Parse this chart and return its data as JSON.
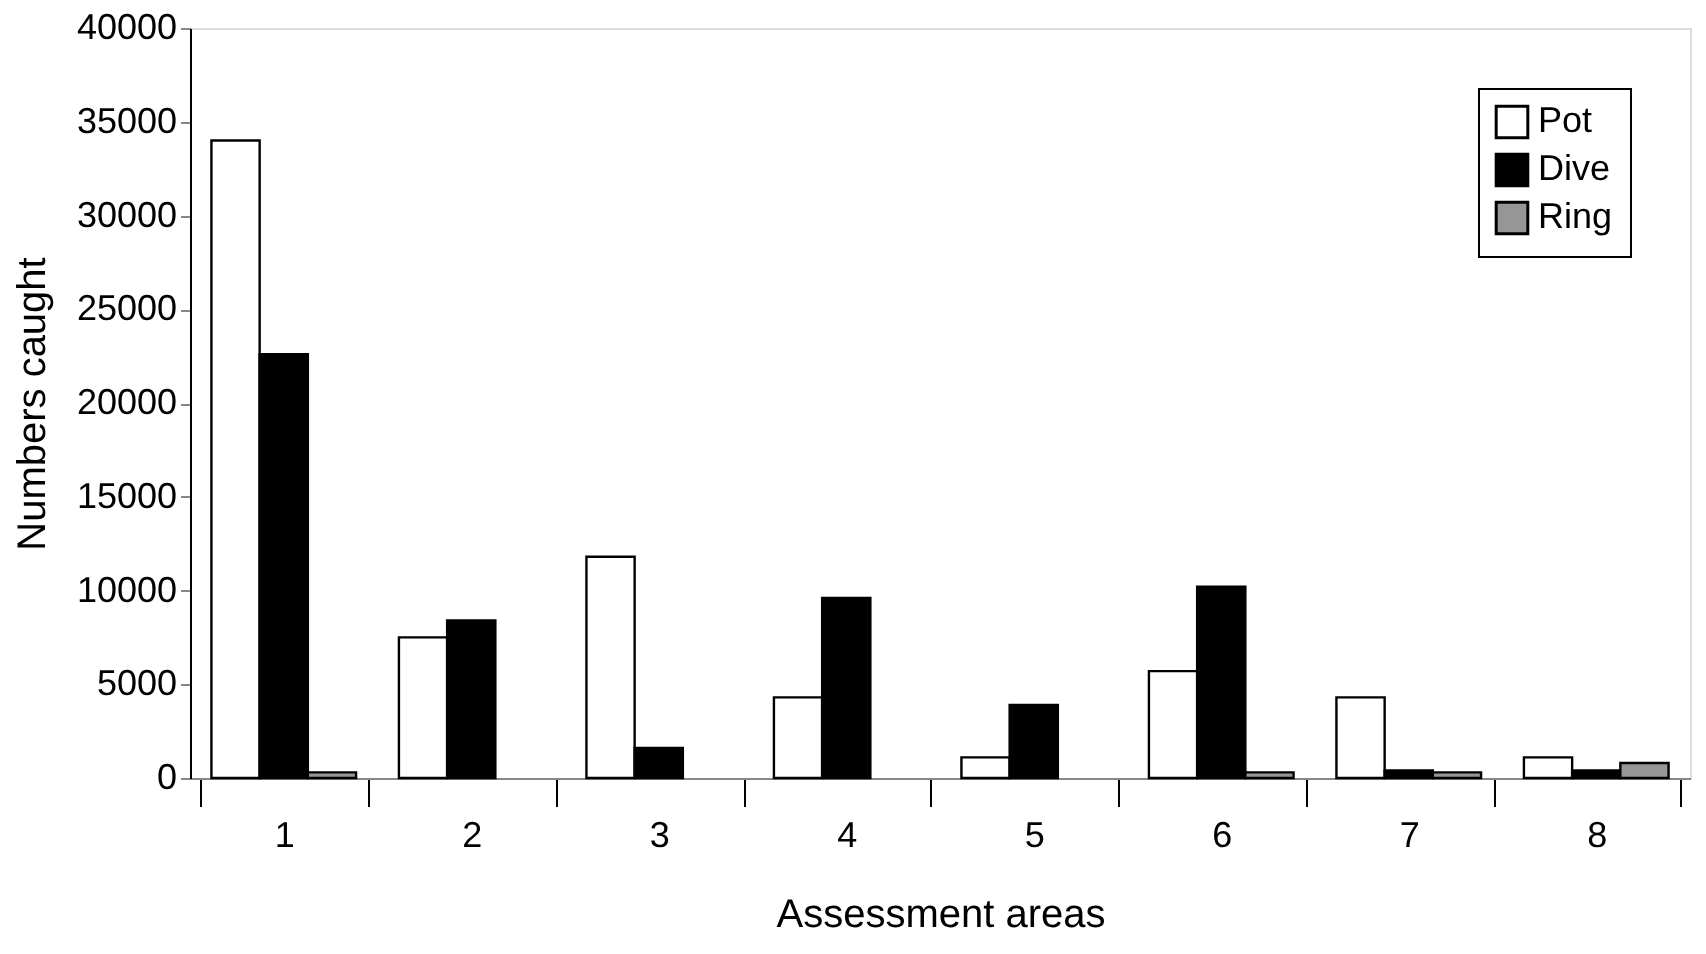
{
  "chart_data": {
    "type": "bar",
    "xlabel": "Assessment areas",
    "ylabel": "Numbers caught",
    "categories": [
      "1",
      "2",
      "3",
      "4",
      "5",
      "6",
      "7",
      "8"
    ],
    "series": [
      {
        "name": "Pot",
        "color": "#ffffff",
        "values": [
          34000,
          7500,
          11800,
          4300,
          1100,
          5700,
          4300,
          1100
        ]
      },
      {
        "name": "Dive",
        "color": "#000000",
        "values": [
          22600,
          8400,
          1600,
          9600,
          3900,
          10200,
          400,
          400
        ]
      },
      {
        "name": "Ring",
        "color": "#969696",
        "values": [
          300,
          null,
          null,
          null,
          null,
          300,
          300,
          800
        ]
      }
    ],
    "ylim": [
      0,
      40000
    ],
    "yticks": [
      0,
      5000,
      10000,
      15000,
      20000,
      25000,
      30000,
      35000,
      40000
    ],
    "grid": false,
    "legend": "top right"
  }
}
